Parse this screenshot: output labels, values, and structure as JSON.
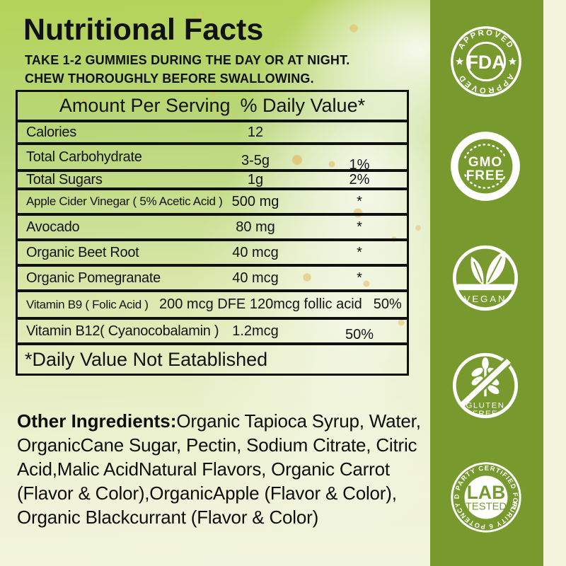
{
  "title": "Nutritional Facts",
  "subtitle_lines": [
    "TAKE 1-2 GUMMIES DURING THE DAY OR AT NIGHT.",
    "CHEW THOROUGHLY BEFORE SWALLOWING."
  ],
  "table": {
    "header": {
      "col_amount": "Amount Per Serving",
      "col_dv": "% Daily Value*"
    },
    "rows": [
      {
        "label": "Calories",
        "amount": "12",
        "dv": ""
      },
      {
        "label": "Total Carbohydrate",
        "amount": "3-5g",
        "dv": "1%"
      },
      {
        "label": "Total Sugars",
        "amount": "1g",
        "dv": "2%"
      },
      {
        "label": "Apple Cider Vinegar ( 5% Acetic Acid )",
        "amount": "500 mg",
        "dv": "*"
      },
      {
        "label": "Avocado",
        "amount": "80 mg",
        "dv": "*"
      },
      {
        "label": "Organic Beet Root",
        "amount": "40 mcg",
        "dv": "*"
      },
      {
        "label": "Organic Pomegranate",
        "amount": "40 mcg",
        "dv": "*"
      },
      {
        "label": "Vitamin B9 ( Folic Acid )",
        "amount": "200 mcg DFE 120mcg follic acid",
        "dv": "50%"
      },
      {
        "label": "Vitamin B12( Cyanocobalamin )",
        "amount": "1.2mcg",
        "dv": "50%"
      }
    ],
    "footnote": "*Daily Value Not Eatablished"
  },
  "other_ingredients": {
    "heading": "Other Ingredients:",
    "text": "Organic Tapioca Syrup, Water, OrganicCane Sugar, Pectin, Sodium Citrate, Citric Acid,Malic AcidNatural Flavors, Organic Carrot (Flavor & Color),OrganicApple (Flavor & Color), Organic Blackcurrant (Flavor & Color)"
  },
  "badges": {
    "fda": {
      "arc_top": "APPROVED",
      "center": "FDA",
      "arc_bottom": "APPROVED"
    },
    "gmo": {
      "line1": "GMO",
      "line2": "FREE"
    },
    "vegan": {
      "label": "VEGAN"
    },
    "gluten": {
      "line1": "GLUTEN",
      "line2": "FREE"
    },
    "lab": {
      "arc_top": "3RD PARTY CERTIFIED FOR",
      "line1": "LAB",
      "line2": "TESTED",
      "arc_bottom": "PURITY 6 POTENCY"
    }
  },
  "colors": {
    "band_green": "#78992e",
    "cream_strip": "#f2f5dc",
    "badge_white": "#ffffff"
  }
}
